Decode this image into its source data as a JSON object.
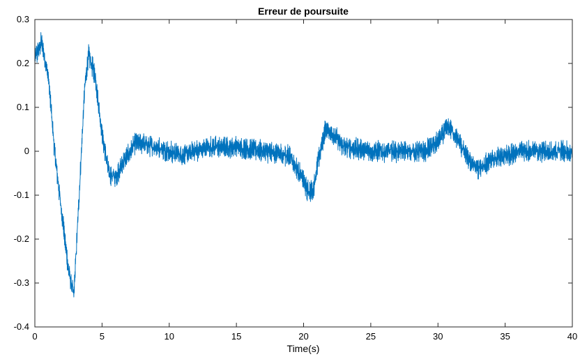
{
  "chart_data": {
    "type": "line",
    "title": "Erreur de poursuite",
    "xlabel": "Time(s)",
    "ylabel": "",
    "xlim": [
      0,
      40
    ],
    "ylim": [
      -0.4,
      0.3
    ],
    "xticks": [
      "0",
      "5",
      "10",
      "15",
      "20",
      "25",
      "30",
      "35",
      "40"
    ],
    "yticks": [
      "0.3",
      "0.2",
      "0.1",
      "0",
      "-0.1",
      "-0.2",
      "-0.3",
      "-0.4"
    ],
    "grid": false,
    "line_color": "#0072BD",
    "series": [
      {
        "name": "",
        "noise_amplitude": 0.022,
        "x": [
          0,
          0.5,
          1.0,
          1.5,
          2.0,
          2.5,
          2.9,
          3.3,
          3.7,
          4.0,
          4.5,
          5.0,
          5.5,
          6.0,
          6.5,
          7.5,
          9,
          11,
          13,
          15,
          17,
          19,
          19.7,
          20.3,
          20.7,
          21.1,
          21.6,
          22.2,
          23,
          25,
          27,
          29,
          30.0,
          30.6,
          31.0,
          31.6,
          32.3,
          33.0,
          34,
          36,
          38,
          40
        ],
        "y": [
          0.21,
          0.25,
          0.17,
          -0.01,
          -0.14,
          -0.27,
          -0.33,
          -0.1,
          0.14,
          0.22,
          0.17,
          0.04,
          -0.05,
          -0.06,
          -0.03,
          0.02,
          0.01,
          -0.01,
          0.01,
          0.01,
          0.0,
          -0.01,
          -0.05,
          -0.09,
          -0.09,
          -0.02,
          0.05,
          0.04,
          0.01,
          0.0,
          0.0,
          0.0,
          0.02,
          0.05,
          0.05,
          0.02,
          -0.02,
          -0.04,
          -0.02,
          0.0,
          0.0,
          0.0
        ]
      }
    ]
  }
}
